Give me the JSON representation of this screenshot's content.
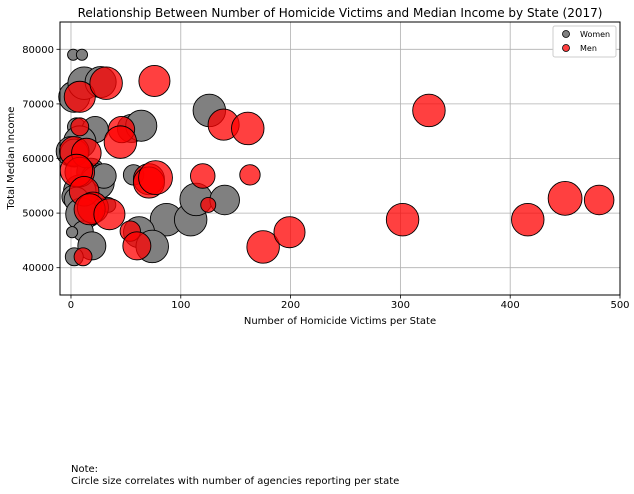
{
  "chart_data": {
    "type": "scatter",
    "title": "Relationship Between Number of Homicide Victims and Median Income by State (2017)",
    "xlabel": "Number of Homicide Victims per State",
    "ylabel": "Total Median Income",
    "xlim": [
      -10,
      500
    ],
    "ylim": [
      35000,
      85000
    ],
    "x_ticks": [
      0,
      100,
      200,
      300,
      400,
      500
    ],
    "y_ticks": [
      40000,
      50000,
      60000,
      70000,
      80000
    ],
    "grid": true,
    "legend_position": "top-right",
    "size_encoding": "number of agencies reporting per state",
    "series": [
      {
        "name": "Women",
        "color": "#808080",
        "points": [
          {
            "x": 2,
            "y": 79000,
            "s": 1
          },
          {
            "x": 10,
            "y": 79000,
            "s": 1
          },
          {
            "x": 3,
            "y": 71300,
            "s": 10
          },
          {
            "x": 12,
            "y": 73800,
            "s": 11
          },
          {
            "x": 27,
            "y": 74000,
            "s": 10
          },
          {
            "x": 5,
            "y": 65800,
            "s": 3
          },
          {
            "x": 22,
            "y": 65300,
            "s": 7
          },
          {
            "x": 55,
            "y": 65500,
            "s": 8
          },
          {
            "x": 64,
            "y": 66000,
            "s": 10
          },
          {
            "x": 126,
            "y": 68800,
            "s": 11
          },
          {
            "x": 8,
            "y": 63000,
            "s": 11
          },
          {
            "x": 0,
            "y": 61300,
            "s": 9
          },
          {
            "x": 3,
            "y": 61000,
            "s": 8
          },
          {
            "x": 18,
            "y": 57500,
            "s": 8
          },
          {
            "x": 23,
            "y": 56200,
            "s": 10
          },
          {
            "x": 24,
            "y": 55600,
            "s": 12
          },
          {
            "x": 30,
            "y": 56800,
            "s": 6
          },
          {
            "x": 57,
            "y": 57000,
            "s": 4
          },
          {
            "x": 8,
            "y": 54000,
            "s": 11
          },
          {
            "x": 2,
            "y": 53000,
            "s": 5
          },
          {
            "x": 5,
            "y": 52500,
            "s": 6
          },
          {
            "x": 15,
            "y": 50300,
            "s": 10
          },
          {
            "x": 10,
            "y": 49800,
            "s": 11
          },
          {
            "x": 34,
            "y": 51500,
            "s": 2
          },
          {
            "x": 87,
            "y": 48800,
            "s": 11
          },
          {
            "x": 109,
            "y": 48800,
            "s": 11
          },
          {
            "x": 114,
            "y": 52500,
            "s": 11
          },
          {
            "x": 140,
            "y": 52400,
            "s": 9
          },
          {
            "x": 11,
            "y": 46700,
            "s": 4
          },
          {
            "x": 62,
            "y": 46500,
            "s": 10
          },
          {
            "x": 74,
            "y": 43900,
            "s": 11
          },
          {
            "x": 19,
            "y": 44000,
            "s": 8
          },
          {
            "x": 1,
            "y": 46500,
            "s": 1
          },
          {
            "x": 3,
            "y": 42000,
            "s": 3
          }
        ]
      },
      {
        "name": "Men",
        "color": "#ff0000",
        "points": [
          {
            "x": 8,
            "y": 71300,
            "s": 10
          },
          {
            "x": 32,
            "y": 73800,
            "s": 11
          },
          {
            "x": 76,
            "y": 74200,
            "s": 10
          },
          {
            "x": 8,
            "y": 65800,
            "s": 3
          },
          {
            "x": 46,
            "y": 65300,
            "s": 7
          },
          {
            "x": 139,
            "y": 66200,
            "s": 10
          },
          {
            "x": 161,
            "y": 65500,
            "s": 11
          },
          {
            "x": 326,
            "y": 68800,
            "s": 11
          },
          {
            "x": 45,
            "y": 63000,
            "s": 11
          },
          {
            "x": 3,
            "y": 61300,
            "s": 9
          },
          {
            "x": 14,
            "y": 61000,
            "s": 9
          },
          {
            "x": 8,
            "y": 57500,
            "s": 9
          },
          {
            "x": 5,
            "y": 57800,
            "s": 11
          },
          {
            "x": 71,
            "y": 56200,
            "s": 10
          },
          {
            "x": 71,
            "y": 55600,
            "s": 10
          },
          {
            "x": 77,
            "y": 56500,
            "s": 12
          },
          {
            "x": 120,
            "y": 56800,
            "s": 6
          },
          {
            "x": 163,
            "y": 57000,
            "s": 4
          },
          {
            "x": 12,
            "y": 54000,
            "s": 9
          },
          {
            "x": 20,
            "y": 51000,
            "s": 10
          },
          {
            "x": 17,
            "y": 50700,
            "s": 10
          },
          {
            "x": 35,
            "y": 49800,
            "s": 10
          },
          {
            "x": 125,
            "y": 51500,
            "s": 2
          },
          {
            "x": 54,
            "y": 46700,
            "s": 4
          },
          {
            "x": 60,
            "y": 44000,
            "s": 8
          },
          {
            "x": 175,
            "y": 43800,
            "s": 11
          },
          {
            "x": 199,
            "y": 46500,
            "s": 10
          },
          {
            "x": 302,
            "y": 48800,
            "s": 11
          },
          {
            "x": 416,
            "y": 48800,
            "s": 11
          },
          {
            "x": 450,
            "y": 52700,
            "s": 12
          },
          {
            "x": 481,
            "y": 52400,
            "s": 9
          },
          {
            "x": 11,
            "y": 42000,
            "s": 3
          }
        ]
      }
    ]
  },
  "note": {
    "line1": "Note:",
    "line2": "Circle size correlates with number of agencies reporting per state"
  }
}
